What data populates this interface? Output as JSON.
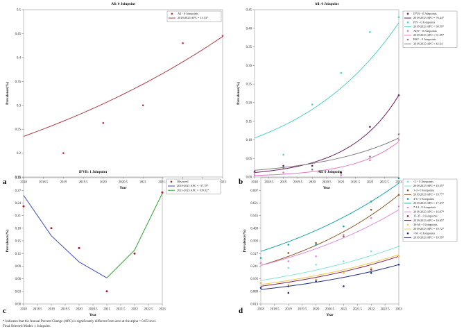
{
  "footnote": {
    "line1": "* Indicates that the Annual Percent Change (APC) is significantly different from zero at the alpha = 0.05 level.",
    "line2": "Final Selected Model: 1 Joinpoint."
  },
  "chart_data": [
    {
      "panel": "a",
      "type": "line",
      "title": "All: 0 Joinpoint",
      "xlabel": "Year",
      "ylabel": "Prevalence(%)",
      "xlim": [
        2018,
        2023
      ],
      "ylim": [
        0.15,
        0.5
      ],
      "xticks": [
        "2018",
        "2018.5",
        "2019",
        "2019.5",
        "2020",
        "2020.5",
        "2021",
        "2021.5",
        "2022",
        "2022.5",
        "2023"
      ],
      "yticks": [
        "0.15",
        "0.2",
        "0.25",
        "0.3",
        "0.35",
        "0.4",
        "0.45",
        "0.5"
      ],
      "legend_position": "top-right",
      "series": [
        {
          "name": "All",
          "legend_obs": "All - 0 Joinpoints",
          "legend_fit": "2018-2023 APC = 13.53*",
          "color": "#b23a48",
          "x_obs": [
            2019,
            2020,
            2021,
            2022,
            2023
          ],
          "y_obs": [
            0.2,
            0.263,
            0.3,
            0.43,
            0.445
          ],
          "x_fit": [
            2018,
            2023
          ],
          "y_fit": [
            0.235,
            0.444
          ],
          "apc": 13.53
        }
      ]
    },
    {
      "panel": "b",
      "type": "line",
      "title": "All: 0 Joinpoint",
      "xlabel": "Year",
      "ylabel": "Prevalence(%)",
      "xlim": [
        2018,
        2023
      ],
      "ylim": [
        0,
        0.45
      ],
      "xticks": [
        "2018",
        "2018.5",
        "2019",
        "2019.5",
        "2020",
        "2020.5",
        "2021",
        "2021.5",
        "2022",
        "2022.5",
        "2023"
      ],
      "yticks": [
        "0.00",
        "0.05",
        "0.10",
        "0.15",
        "0.20",
        "0.25",
        "0.30",
        "0.35",
        "0.40",
        "0.45"
      ],
      "legend_position": "top-right",
      "series": [
        {
          "name": "IFVA",
          "legend_obs": "IFVA - 0 Joinpoints",
          "legend_fit": "2018-2023 APC = 76.44*",
          "color": "#6b1d5c",
          "x_obs": [
            2018,
            2019,
            2020,
            2021,
            2022,
            2023
          ],
          "y_obs": [
            0.015,
            0.03,
            0.03,
            0.012,
            0.135,
            0.22
          ],
          "x_fit": [
            2018,
            2023
          ],
          "y_fit": [
            0.012,
            0.22
          ],
          "apc": 76.44
        },
        {
          "name": "PIV",
          "legend_obs": "PIV - 0 Joinpoints",
          "legend_fit": "2018-2023 APC = 38.59*",
          "color": "#4fd1c5",
          "x_obs": [
            2019,
            2020,
            2021,
            2022,
            2023
          ],
          "y_obs": [
            0.06,
            0.195,
            0.28,
            0.39,
            0.43
          ],
          "x_fit": [
            2018,
            2023
          ],
          "y_fit": [
            0.105,
            0.415
          ],
          "apc": 38.59
        },
        {
          "name": "ADV",
          "legend_obs": "ADV - 0 Joinpoints",
          "legend_fit": "2018-2023 APC = 91.95*",
          "color": "#e377c2",
          "x_obs": [
            2018,
            2019,
            2020,
            2021,
            2022,
            2023
          ],
          "y_obs": [
            0.005,
            0.012,
            0.02,
            0.005,
            0.045,
            0.1
          ],
          "x_fit": [
            2018,
            2023
          ],
          "y_fit": [
            0.004,
            0.095
          ],
          "apc": 91.95
        },
        {
          "name": "BSV",
          "legend_obs": "BSV - 0 Joinpoints",
          "legend_fit": "2018-2023 APC = 42.64",
          "color": "#7f7f7f",
          "x_obs": [
            2018,
            2019,
            2020,
            2021,
            2022,
            2023
          ],
          "y_obs": [
            0.012,
            0.025,
            0.02,
            0.01,
            0.055,
            0.115
          ],
          "x_fit": [
            2018,
            2023
          ],
          "y_fit": [
            0.018,
            0.105
          ],
          "apc": 42.64
        }
      ]
    },
    {
      "panel": "c",
      "type": "line",
      "title": "IFVB: 1 Joinpoint",
      "xlabel": "Year",
      "ylabel": "Prevalence(%)",
      "xlim": [
        2018,
        2023
      ],
      "ylim": [
        0,
        0.3
      ],
      "xticks": [
        "2018",
        "2018.5",
        "2019",
        "2019.5",
        "2020",
        "2020.5",
        "2021",
        "2021.5",
        "2022",
        "2022.5",
        "2023"
      ],
      "yticks": [
        "0.00",
        "0.03",
        "0.06",
        "0.09",
        "0.12",
        "0.15",
        "0.18",
        "0.21",
        "0.24",
        "0.27",
        "0.30"
      ],
      "legend_position": "top-right",
      "legend_obs": "Observed",
      "obs_color": "#b2182b",
      "x_obs": [
        2018,
        2019,
        2020,
        2021,
        2022,
        2023
      ],
      "y_obs": [
        0.232,
        0.18,
        0.133,
        0.03,
        0.12,
        0.265
      ],
      "segments": [
        {
          "name": "2018-2021 APC = -37.78*",
          "color": "#3a45c4",
          "x": [
            2018,
            2019,
            2020,
            2021
          ],
          "y": [
            0.258,
            0.162,
            0.1,
            0.062
          ],
          "apc": -37.78
        },
        {
          "name": "2021-2023 APC = 109.32*",
          "color": "#2ca02c",
          "x": [
            2021,
            2022,
            2023
          ],
          "y": [
            0.062,
            0.128,
            0.263
          ],
          "apc": 109.32
        }
      ]
    },
    {
      "panel": "d",
      "type": "line",
      "title": "All: 0 Joinpoint",
      "xlabel": "Year",
      "ylabel": "Prevalence(%)",
      "xlim": [
        2018,
        2023
      ],
      "ylim": [
        0.013,
        0.773
      ],
      "xticks": [
        "2018",
        "2018.5",
        "2019",
        "2019.5",
        "2020",
        "2020.5",
        "2021",
        "2021.5",
        "2022",
        "2022.5",
        "2023"
      ],
      "yticks": [
        "0.013",
        "0.089",
        "0.165",
        "0.241",
        "0.317",
        "0.393",
        "0.469",
        "0.545",
        "0.621",
        "0.697"
      ],
      "legend_position": "top-right",
      "series": [
        {
          "name": "<1",
          "legend_obs": "<1 - 0 Joinpoints",
          "legend_fit": "2018-2023 APC = 18.35*",
          "color": "#7fe3d6",
          "x_obs": [
            2018,
            2019,
            2020,
            2021,
            2022,
            2023
          ],
          "y_obs": [
            0.14,
            0.23,
            0.25,
            0.27,
            0.33,
            0.36
          ],
          "x_fit": [
            2018,
            2023
          ],
          "y_fit": [
            0.155,
            0.36
          ],
          "apc": 18.35
        },
        {
          "name": "1-3",
          "legend_obs": "1-3 - 0 Joinpoints",
          "legend_fit": "2018-2023 APC = 19.77*",
          "color": "#8c5a2b",
          "x_obs": [
            2018,
            2019,
            2020,
            2021,
            2022,
            2023
          ],
          "y_obs": [
            0.26,
            0.32,
            0.38,
            0.42,
            0.58,
            0.67
          ],
          "x_fit": [
            2018,
            2023
          ],
          "y_fit": [
            0.245,
            0.67
          ],
          "apc": 19.77
        },
        {
          "name": "4-6",
          "legend_obs": "4-6 - 0 Joinpoints",
          "legend_fit": "2018-2023 APC = 17.43*",
          "color": "#16a3a3",
          "x_obs": [
            2018,
            2019,
            2020,
            2021,
            2022,
            2023
          ],
          "y_obs": [
            0.29,
            0.37,
            0.37,
            0.48,
            0.63,
            0.77
          ],
          "x_fit": [
            2018,
            2023
          ],
          "y_fit": [
            0.33,
            0.74
          ],
          "apc": 17.43
        },
        {
          "name": "7-14",
          "legend_obs": "7-14 - 0 Joinpoints",
          "legend_fit": "2018-2023 APC = 16.07*",
          "color": "#e38ad6",
          "x_obs": [
            2018,
            2019,
            2020,
            2021,
            2022,
            2023
          ],
          "y_obs": [
            0.26,
            0.27,
            0.3,
            0.43,
            0.53,
            0.6
          ],
          "x_fit": [
            2018,
            2023
          ],
          "y_fit": [
            0.245,
            0.58
          ],
          "apc": 16.07
        },
        {
          "name": "15-35",
          "legend_obs": "15-35 - 0 Joinpoints",
          "legend_fit": "2018-2023 APC = 19.65*",
          "color": "#8a1e4a",
          "x_obs": [
            2018,
            2019,
            2020,
            2021,
            2022,
            2023
          ],
          "y_obs": [
            0.14,
            0.12,
            0.16,
            0.2,
            0.22,
            0.3
          ],
          "x_fit": [
            2018,
            2023
          ],
          "y_fit": [
            0.12,
            0.3
          ],
          "apc": 19.65
        },
        {
          "name": "36-60",
          "legend_obs": "36-60 - 0 Joinpoints",
          "legend_fit": "2018-2023 APC = 18.72*",
          "color": "#f2c84b",
          "x_obs": [
            2018,
            2019,
            2020,
            2021,
            2022,
            2023
          ],
          "y_obs": [
            0.14,
            0.13,
            0.16,
            0.2,
            0.23,
            0.3
          ],
          "x_fit": [
            2018,
            2023
          ],
          "y_fit": [
            0.13,
            0.31
          ],
          "apc": 18.72
        },
        {
          "name": ">60",
          "legend_obs": ">60 - 0 Joinpoints",
          "legend_fit": "2018-2023 APC = 19.59*",
          "color": "#1f2a7a",
          "x_obs": [
            2018,
            2019,
            2020,
            2021,
            2022,
            2023
          ],
          "y_obs": [
            0.11,
            0.08,
            0.15,
            0.12,
            0.2,
            0.25
          ],
          "x_fit": [
            2018,
            2023
          ],
          "y_fit": [
            0.1,
            0.25
          ],
          "apc": 19.59
        }
      ]
    }
  ]
}
